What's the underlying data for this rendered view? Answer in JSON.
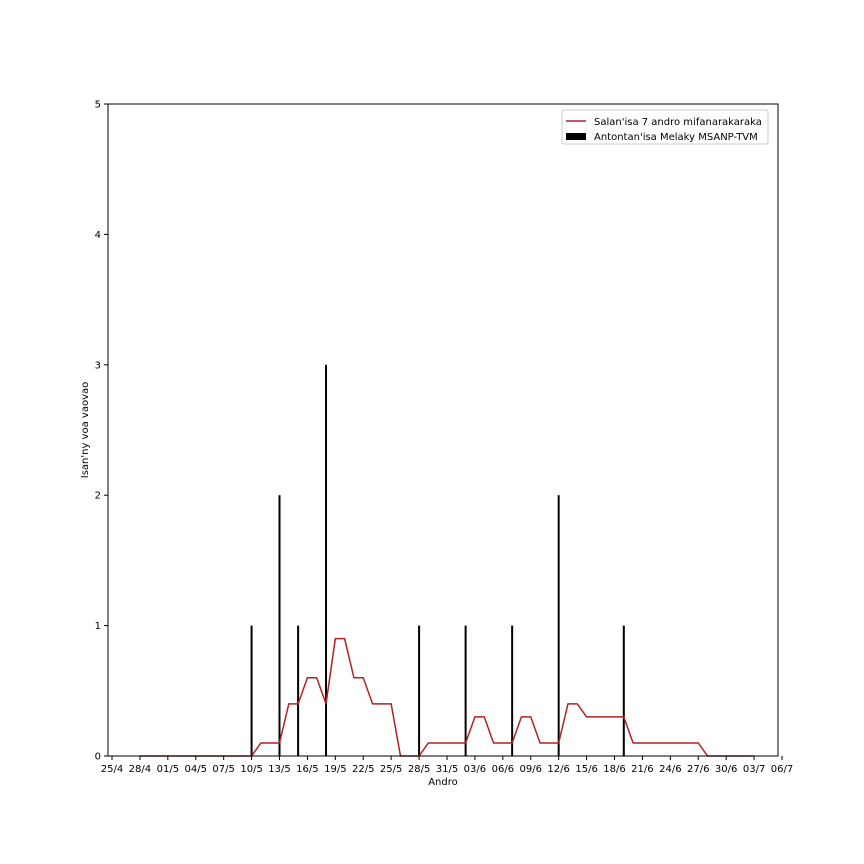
{
  "chart_data": {
    "type": "bar+line",
    "xlabel": "Andro",
    "ylabel": "Isan'ny voa vaovao",
    "ylim": [
      0,
      5
    ],
    "yticks": [
      0,
      1,
      2,
      3,
      4,
      5
    ],
    "x_tick_labels": [
      "25/4",
      "28/4",
      "01/5",
      "04/5",
      "07/5",
      "10/5",
      "13/5",
      "16/5",
      "19/5",
      "22/5",
      "25/5",
      "28/5",
      "31/5",
      "03/6",
      "06/6",
      "09/6",
      "12/6",
      "15/6",
      "18/6",
      "21/6",
      "24/6",
      "27/6",
      "30/6",
      "03/7",
      "06/7"
    ],
    "x_start": "2020-04-25",
    "x_end": "2020-07-06",
    "legend_position": "upper right",
    "series": [
      {
        "name": "Salan'isa 7 andro mifanarakaraka",
        "kind": "line",
        "color": "#b22222",
        "x": [
          "2020-04-28",
          "2020-04-29",
          "2020-04-30",
          "2020-05-01",
          "2020-05-02",
          "2020-05-03",
          "2020-05-04",
          "2020-05-05",
          "2020-05-06",
          "2020-05-07",
          "2020-05-08",
          "2020-05-09",
          "2020-05-10",
          "2020-05-11",
          "2020-05-12",
          "2020-05-13",
          "2020-05-14",
          "2020-05-15",
          "2020-05-16",
          "2020-05-17",
          "2020-05-18",
          "2020-05-19",
          "2020-05-20",
          "2020-05-21",
          "2020-05-22",
          "2020-05-23",
          "2020-05-24",
          "2020-05-25",
          "2020-05-26",
          "2020-05-27",
          "2020-05-28",
          "2020-05-29",
          "2020-05-30",
          "2020-05-31",
          "2020-06-01",
          "2020-06-02",
          "2020-06-03",
          "2020-06-04",
          "2020-06-05",
          "2020-06-06",
          "2020-06-07",
          "2020-06-08",
          "2020-06-09",
          "2020-06-10",
          "2020-06-11",
          "2020-06-12",
          "2020-06-13",
          "2020-06-14",
          "2020-06-15",
          "2020-06-16",
          "2020-06-17",
          "2020-06-18",
          "2020-06-19",
          "2020-06-20",
          "2020-06-21",
          "2020-06-22",
          "2020-06-23",
          "2020-06-24",
          "2020-06-25",
          "2020-06-26",
          "2020-06-27",
          "2020-06-28",
          "2020-06-29",
          "2020-06-30",
          "2020-07-01",
          "2020-07-02",
          "2020-07-03"
        ],
        "values": [
          0,
          0,
          0,
          0,
          0,
          0,
          0,
          0,
          0,
          0,
          0,
          0,
          0,
          0.1,
          0.1,
          0.1,
          0.4,
          0.4,
          0.6,
          0.6,
          0.4,
          0.9,
          0.9,
          0.6,
          0.6,
          0.4,
          0.4,
          0.4,
          0,
          0,
          0,
          0.1,
          0.1,
          0.1,
          0.1,
          0.1,
          0.3,
          0.3,
          0.1,
          0.1,
          0.1,
          0.3,
          0.3,
          0.1,
          0.1,
          0.1,
          0.4,
          0.4,
          0.3,
          0.3,
          0.3,
          0.3,
          0.3,
          0.1,
          0.1,
          0.1,
          0.1,
          0.1,
          0.1,
          0.1,
          0.1,
          0,
          0,
          0,
          0,
          0,
          0
        ]
      },
      {
        "name": "Antontan'isa Melaky MSANP-TVM",
        "kind": "bar",
        "color": "#000000",
        "x": [
          "2020-05-10",
          "2020-05-13",
          "2020-05-15",
          "2020-05-18",
          "2020-05-28",
          "2020-06-02",
          "2020-06-07",
          "2020-06-12",
          "2020-06-19"
        ],
        "values": [
          1,
          2,
          1,
          3,
          1,
          1,
          1,
          2,
          1
        ]
      }
    ]
  }
}
